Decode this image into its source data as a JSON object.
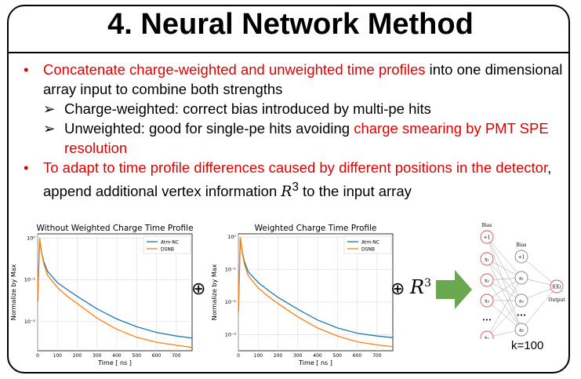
{
  "slide": {
    "title": "4. Neural Network Method",
    "bullets": {
      "b1_red": "Concatenate charge-weighted and unweighted time profiles",
      "b1_black": " into one dimensional array input to combine both strengths",
      "s1": "Charge-weighted: correct bias introduced by multi-pe hits",
      "s2_black": "Unweighted: good for single-pe hits avoiding ",
      "s2_red": "charge smearing by PMT SPE resolution",
      "b2_red": "To adapt to time profile differences caused by different positions in the detector",
      "b2_black_a": ", append additional vertex information ",
      "b2_math": "R",
      "b2_sup": "3",
      "b2_black_b": " to the input array",
      "bullet_glyph": "•",
      "arrow_glyph": "➢"
    },
    "oplus": "⊕",
    "r3_base": "R",
    "r3_sup": "3",
    "k_label": "k=100"
  },
  "chart_data": [
    {
      "type": "line",
      "title": "Without Weighted Charge Time Profile",
      "xlabel": "Time [ ns ]",
      "ylabel": "Normalize by Max",
      "xlim": [
        0,
        780
      ],
      "ylim_log10": [
        -2.7,
        0.1
      ],
      "yscale": "log",
      "xticks": [
        0,
        100,
        200,
        300,
        400,
        500,
        600,
        700
      ],
      "yticks": [
        "10⁰",
        "10⁻¹",
        "10⁻²"
      ],
      "grid": true,
      "legend_position": "top-right",
      "series": [
        {
          "name": "Atm-NC",
          "color": "#1f77b4",
          "x": [
            0,
            10,
            20,
            30,
            50,
            100,
            150,
            200,
            300,
            400,
            500,
            600,
            700,
            780
          ],
          "y": [
            0.03,
            0.85,
            0.45,
            0.28,
            0.16,
            0.085,
            0.058,
            0.04,
            0.02,
            0.0115,
            0.0075,
            0.0055,
            0.0045,
            0.004
          ]
        },
        {
          "name": "DSNB",
          "color": "#ff7f0e",
          "x": [
            0,
            10,
            20,
            30,
            50,
            100,
            150,
            200,
            300,
            400,
            500,
            600,
            700,
            780
          ],
          "y": [
            0.03,
            1.0,
            0.45,
            0.25,
            0.13,
            0.065,
            0.04,
            0.027,
            0.012,
            0.0065,
            0.0042,
            0.0032,
            0.0027,
            0.0024
          ]
        }
      ]
    },
    {
      "type": "line",
      "title": "Weighted Charge Time Profile",
      "xlabel": "Time [ ns ]",
      "ylabel": "Normalize by Max",
      "xlim": [
        0,
        780
      ],
      "ylim_log10": [
        -3.5,
        0.1
      ],
      "yscale": "log",
      "xticks": [
        0,
        100,
        200,
        300,
        400,
        500,
        600,
        700
      ],
      "yticks": [
        "10⁰",
        "10⁻¹",
        "10⁻²",
        "10⁻³"
      ],
      "grid": true,
      "legend_position": "top-right",
      "series": [
        {
          "name": "Atm-NC",
          "color": "#1f77b4",
          "x": [
            0,
            10,
            20,
            30,
            50,
            100,
            150,
            200,
            300,
            400,
            500,
            600,
            700,
            780
          ],
          "y": [
            0.005,
            0.9,
            0.35,
            0.18,
            0.085,
            0.04,
            0.023,
            0.014,
            0.006,
            0.0028,
            0.0016,
            0.0011,
            0.0009,
            0.0008
          ]
        },
        {
          "name": "DSNB",
          "color": "#ff7f0e",
          "x": [
            0,
            10,
            20,
            30,
            50,
            100,
            150,
            200,
            300,
            400,
            500,
            600,
            700,
            780
          ],
          "y": [
            0.005,
            1.0,
            0.32,
            0.15,
            0.065,
            0.027,
            0.015,
            0.009,
            0.0035,
            0.0016,
            0.0009,
            0.0006,
            0.00048,
            0.00042
          ]
        }
      ]
    }
  ],
  "network": {
    "input_bias_label": "Bias",
    "hidden_bias_label": "Bias",
    "inputs": [
      "+1",
      "x₁",
      "x₂",
      "x₃",
      "xₙ"
    ],
    "hidden": [
      "+1",
      "a₁",
      "a₂",
      "aₖ"
    ],
    "output": "f(X)",
    "output_label": "Output",
    "dots": "•••"
  }
}
